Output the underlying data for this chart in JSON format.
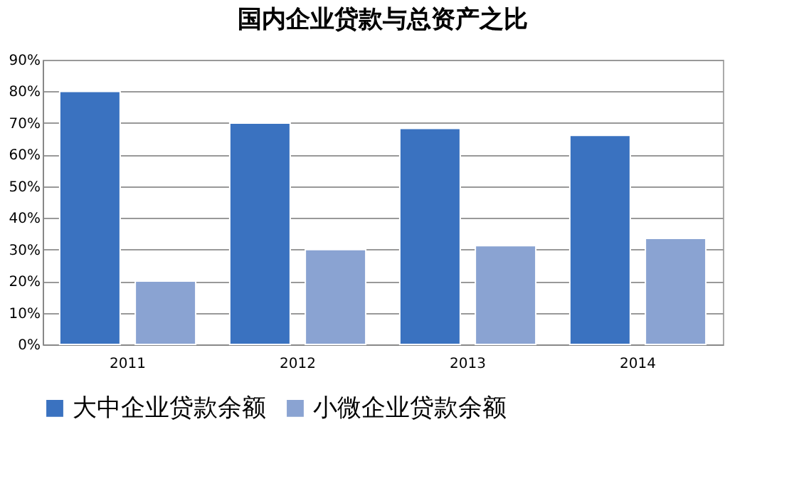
{
  "chart_data": {
    "type": "bar",
    "title": "国内企业贷款与总资产之比",
    "categories": [
      "2011",
      "2012",
      "2013",
      "2014"
    ],
    "series": [
      {
        "name": "大中企业贷款余额",
        "color": "#3a72c0",
        "values": [
          80,
          70,
          68.3,
          66.1
        ]
      },
      {
        "name": "小微企业贷款余额",
        "color": "#8aa3d2",
        "values": [
          20,
          30,
          31.2,
          33.5
        ]
      }
    ],
    "ylim": [
      0,
      90
    ],
    "yticks": [
      {
        "value": 0,
        "label": "0%"
      },
      {
        "value": 10,
        "label": "10%"
      },
      {
        "value": 20,
        "label": "20%"
      },
      {
        "value": 30,
        "label": "30%"
      },
      {
        "value": 40,
        "label": "40%"
      },
      {
        "value": 50,
        "label": "50%"
      },
      {
        "value": 60,
        "label": "60%"
      },
      {
        "value": 70,
        "label": "70%"
      },
      {
        "value": 80,
        "label": "80%"
      },
      {
        "value": 90,
        "label": "90%"
      }
    ],
    "grid": "y",
    "legend": "bottom"
  }
}
